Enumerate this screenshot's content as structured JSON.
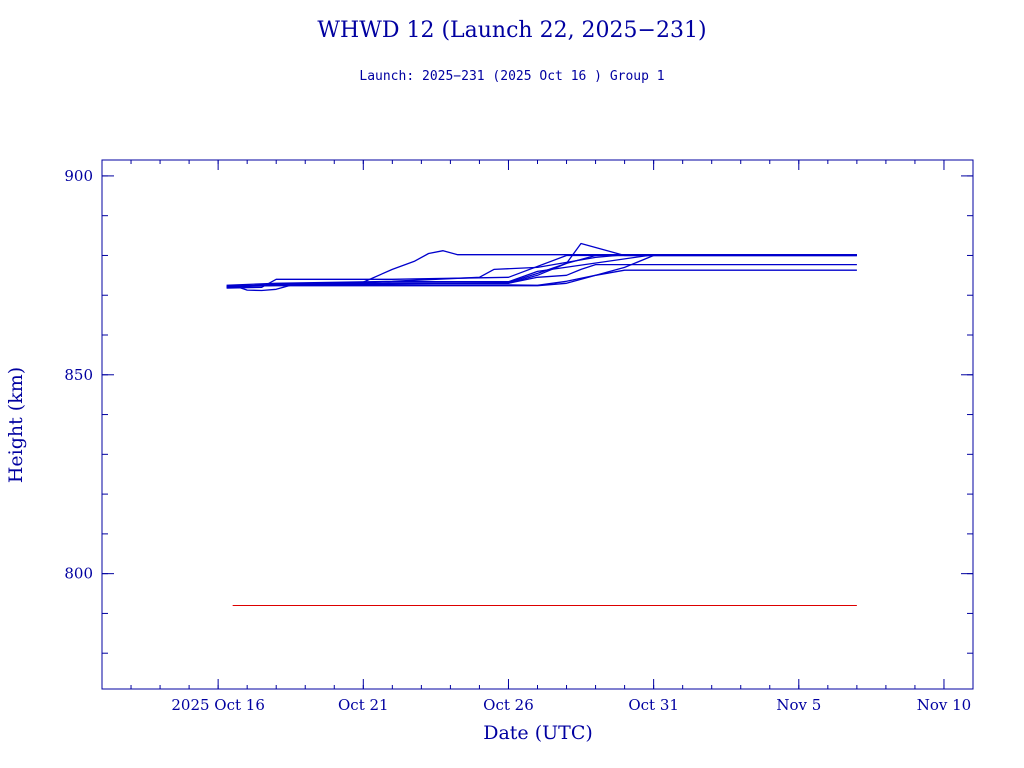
{
  "chart_data": {
    "type": "line",
    "title": "WHWD 12 (Launch 22, 2025−231)",
    "subtitle": "Launch: 2025−231  (2025 Oct 16 )  Group 1",
    "xlabel": "Date (UTC)",
    "ylabel": "Height (km)",
    "x_unit": "date",
    "xlim": [
      "2025-10-12",
      "2025-11-11"
    ],
    "ylim": [
      771,
      904
    ],
    "x_ticks": [
      {
        "date": "2025-10-16",
        "label": "2025 Oct 16"
      },
      {
        "date": "2025-10-21",
        "label": "Oct 21"
      },
      {
        "date": "2025-10-26",
        "label": "Oct 26"
      },
      {
        "date": "2025-10-31",
        "label": "Oct 31"
      },
      {
        "date": "2025-11-05",
        "label": "Nov  5"
      },
      {
        "date": "2025-11-10",
        "label": "Nov 10"
      }
    ],
    "y_ticks": [
      800,
      850,
      900
    ],
    "grid": false,
    "colors": {
      "axes": "#0000a0",
      "series": "#0000cc",
      "reference": "#dd0000"
    },
    "series": [
      {
        "points": [
          [
            "2025-10-16T07:00",
            872.3
          ],
          [
            "2025-10-18T00:00",
            872.5
          ],
          [
            "2025-10-20T12:00",
            873.0
          ],
          [
            "2025-10-22T00:00",
            873.4
          ],
          [
            "2025-10-26T00:00",
            873.4
          ],
          [
            "2025-10-27T00:00",
            876.0
          ],
          [
            "2025-10-31T00:00",
            880.2
          ],
          [
            "2025-11-07T00:00",
            880.2
          ]
        ]
      },
      {
        "points": [
          [
            "2025-10-16T07:00",
            872.0
          ],
          [
            "2025-10-18T00:00",
            872.8
          ],
          [
            "2025-10-21T00:00",
            873.3
          ],
          [
            "2025-10-22T00:00",
            876.5
          ],
          [
            "2025-10-22T18:00",
            878.5
          ],
          [
            "2025-10-23T06:00",
            880.5
          ],
          [
            "2025-10-23T18:00",
            881.2
          ],
          [
            "2025-10-24T06:00",
            880.2
          ],
          [
            "2025-11-07T00:00",
            880.2
          ]
        ]
      },
      {
        "points": [
          [
            "2025-10-16T07:00",
            872.5
          ],
          [
            "2025-10-18T00:00",
            873.0
          ],
          [
            "2025-10-22T00:00",
            873.5
          ],
          [
            "2025-10-25T00:00",
            874.5
          ],
          [
            "2025-10-25T12:00",
            876.5
          ],
          [
            "2025-10-27T00:00",
            877.0
          ],
          [
            "2025-10-29T00:00",
            879.5
          ],
          [
            "2025-10-30T00:00",
            880.2
          ],
          [
            "2025-11-07T00:00",
            880.2
          ]
        ]
      },
      {
        "points": [
          [
            "2025-10-16T07:00",
            871.8
          ],
          [
            "2025-10-17T12:00",
            872.0
          ],
          [
            "2025-10-18T00:00",
            874.0
          ],
          [
            "2025-10-22T00:00",
            874.0
          ],
          [
            "2025-10-26T00:00",
            874.5
          ],
          [
            "2025-10-28T00:00",
            880.0
          ],
          [
            "2025-11-07T00:00",
            880.0
          ]
        ]
      },
      {
        "points": [
          [
            "2025-10-16T07:00",
            872.2
          ],
          [
            "2025-10-18T12:00",
            872.6
          ],
          [
            "2025-10-22T00:00",
            873.0
          ],
          [
            "2025-10-26T00:00",
            873.0
          ],
          [
            "2025-10-27T00:00",
            875.0
          ],
          [
            "2025-10-28T00:00",
            878.0
          ],
          [
            "2025-10-29T00:00",
            880.0
          ],
          [
            "2025-11-07T00:00",
            880.0
          ]
        ]
      },
      {
        "points": [
          [
            "2025-10-16T07:00",
            872.0
          ],
          [
            "2025-10-18T00:00",
            872.5
          ],
          [
            "2025-10-26T00:00",
            873.2
          ],
          [
            "2025-10-27T00:00",
            875.5
          ],
          [
            "2025-10-28T00:00",
            878.0
          ],
          [
            "2025-10-28T12:00",
            883.0
          ],
          [
            "2025-10-29T12:00",
            881.0
          ],
          [
            "2025-10-30T00:00",
            880.0
          ],
          [
            "2025-11-07T00:00",
            880.0
          ]
        ]
      },
      {
        "points": [
          [
            "2025-10-16T12:00",
            872.5
          ],
          [
            "2025-10-17T00:00",
            871.3
          ],
          [
            "2025-10-17T12:00",
            871.2
          ],
          [
            "2025-10-18T00:00",
            871.5
          ],
          [
            "2025-10-18T12:00",
            872.5
          ],
          [
            "2025-10-22T00:00",
            873.0
          ],
          [
            "2025-10-26T00:00",
            873.0
          ],
          [
            "2025-10-27T00:00",
            874.5
          ],
          [
            "2025-10-28T00:00",
            875.0
          ],
          [
            "2025-10-28T12:00",
            876.5
          ],
          [
            "2025-10-29T00:00",
            877.7
          ],
          [
            "2025-11-07T00:00",
            877.7
          ]
        ]
      },
      {
        "points": [
          [
            "2025-10-16T07:00",
            872.3
          ],
          [
            "2025-10-18T00:00",
            872.6
          ],
          [
            "2025-10-26T00:00",
            872.6
          ],
          [
            "2025-10-27T00:00",
            872.5
          ],
          [
            "2025-10-28T00:00",
            873.5
          ],
          [
            "2025-10-29T00:00",
            875.0
          ],
          [
            "2025-10-30T00:00",
            876.3
          ],
          [
            "2025-11-07T00:00",
            876.3
          ]
        ]
      },
      {
        "points": [
          [
            "2025-10-16T07:00",
            872.3
          ],
          [
            "2025-10-18T00:00",
            872.4
          ],
          [
            "2025-10-26T00:00",
            872.4
          ],
          [
            "2025-10-27T00:00",
            872.4
          ],
          [
            "2025-10-28T00:00",
            873.0
          ],
          [
            "2025-10-30T00:00",
            877.0
          ],
          [
            "2025-10-31T00:00",
            880.0
          ],
          [
            "2025-11-07T00:00",
            880.0
          ]
        ]
      }
    ],
    "reference_line": {
      "y": 792,
      "x_start": "2025-10-16T12:00",
      "x_end": "2025-11-07T00:00"
    }
  }
}
